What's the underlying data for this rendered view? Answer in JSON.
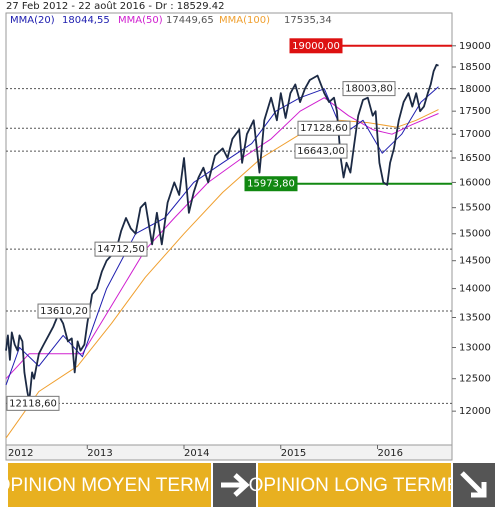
{
  "chart_data": {
    "type": "line",
    "title": "27 Feb 2012 - 22 août 2016 - Dr : 18529.42",
    "log_scale": true,
    "xlim": [
      2012.16,
      2016.77
    ],
    "xticks": [
      2012,
      2013,
      2014,
      2015,
      2016
    ],
    "ylim": [
      11500,
      19800
    ],
    "yticks": [
      12000,
      12500,
      13000,
      13500,
      14000,
      14500,
      15000,
      15500,
      16000,
      16500,
      17000,
      17500,
      18000,
      18500,
      19000
    ],
    "series": [
      {
        "color": "#1c2a44",
        "x": [
          2012.16,
          2012.18,
          2012.2,
          2012.22,
          2012.25,
          2012.28,
          2012.3,
          2012.33,
          2012.35,
          2012.38,
          2012.4,
          2012.43,
          2012.45,
          2012.5,
          2012.55,
          2012.6,
          2012.65,
          2012.7,
          2012.75,
          2012.8,
          2012.84,
          2012.87,
          2012.9,
          2012.93,
          2012.97,
          2013.0,
          2013.05,
          2013.1,
          2013.15,
          2013.2,
          2013.25,
          2013.3,
          2013.35,
          2013.4,
          2013.45,
          2013.5,
          2013.55,
          2013.6,
          2013.67,
          2013.72,
          2013.77,
          2013.83,
          2013.9,
          2013.95,
          2014.0,
          2014.05,
          2014.1,
          2014.15,
          2014.2,
          2014.25,
          2014.32,
          2014.4,
          2014.45,
          2014.5,
          2014.57,
          2014.6,
          2014.65,
          2014.72,
          2014.78,
          2014.83,
          2014.9,
          2014.96,
          2015.0,
          2015.05,
          2015.1,
          2015.15,
          2015.2,
          2015.25,
          2015.3,
          2015.38,
          2015.45,
          2015.5,
          2015.55,
          2015.58,
          2015.62,
          2015.65,
          2015.68,
          2015.72,
          2015.76,
          2015.8,
          2015.85,
          2015.9,
          2015.95,
          2015.98,
          2016.02,
          2016.06,
          2016.1,
          2016.13,
          2016.17,
          2016.22,
          2016.27,
          2016.32,
          2016.36,
          2016.4,
          2016.44,
          2016.48,
          2016.52,
          2016.55,
          2016.58,
          2016.61,
          2016.63
        ],
        "values": [
          12950,
          13200,
          12800,
          13250,
          13050,
          12950,
          13200,
          13100,
          12600,
          12300,
          12150,
          12600,
          12500,
          12900,
          13050,
          13200,
          13350,
          13550,
          13400,
          13100,
          13150,
          12600,
          13100,
          12950,
          13050,
          13400,
          13900,
          14000,
          14300,
          14500,
          14600,
          14700,
          15050,
          15300,
          15100,
          15000,
          15500,
          15600,
          14800,
          15400,
          14800,
          15600,
          16000,
          15750,
          16500,
          15400,
          15800,
          16100,
          16300,
          16000,
          16550,
          16700,
          16500,
          16900,
          17100,
          16400,
          17000,
          17300,
          16200,
          17300,
          17800,
          17300,
          17900,
          17350,
          17900,
          18100,
          17700,
          18000,
          18200,
          18300,
          17900,
          17700,
          17800,
          17500,
          16500,
          16100,
          16400,
          16200,
          16800,
          17400,
          17750,
          17800,
          17400,
          17500,
          16400,
          16000,
          15950,
          16400,
          16700,
          17300,
          17700,
          17900,
          17600,
          17900,
          17500,
          17600,
          17900,
          18100,
          18400,
          18550,
          18529.42
        ]
      },
      {
        "name": "MMA(20)",
        "color": "#2020b0",
        "last_value_label": "18044,55",
        "x": [
          2012.16,
          2012.3,
          2012.5,
          2012.75,
          2012.95,
          2013.2,
          2013.5,
          2013.8,
          2014.1,
          2014.4,
          2014.7,
          2014.95,
          2015.2,
          2015.45,
          2015.65,
          2015.85,
          2016.05,
          2016.25,
          2016.45,
          2016.63
        ],
        "values": [
          12400,
          13000,
          12700,
          13200,
          12850,
          14000,
          15000,
          15300,
          16000,
          16400,
          16800,
          17500,
          17800,
          18000,
          17000,
          17300,
          16600,
          17000,
          17700,
          18044.55
        ]
      },
      {
        "name": "MMA(50)",
        "color": "#d020d0",
        "last_value_label": "17449,65",
        "x": [
          2012.16,
          2012.4,
          2012.7,
          2012.95,
          2013.25,
          2013.6,
          2013.9,
          2014.25,
          2014.6,
          2014.9,
          2015.2,
          2015.45,
          2015.7,
          2015.95,
          2016.15,
          2016.35,
          2016.63
        ],
        "values": [
          12500,
          12900,
          12900,
          12900,
          13700,
          14700,
          15300,
          16000,
          16500,
          16900,
          17500,
          17800,
          17400,
          17100,
          17000,
          17200,
          17449.65
        ]
      },
      {
        "name": "MMA(100)",
        "color": "#f0a030",
        "last_value_label": "17535,34",
        "x": [
          2012.16,
          2012.5,
          2012.9,
          2013.25,
          2013.6,
          2014.0,
          2014.4,
          2014.8,
          2015.2,
          2015.6,
          2015.9,
          2016.2,
          2016.4,
          2016.63
        ],
        "values": [
          11600,
          12300,
          12700,
          13400,
          14200,
          15000,
          15800,
          16500,
          17000,
          17300,
          17250,
          17150,
          17300,
          17535.34
        ]
      }
    ],
    "levels": {
      "values": [
        19000,
        18003.8,
        17128.6,
        16643,
        15973.8,
        14712.5,
        13610.2,
        12118.6
      ],
      "value_labels": [
        "19000,00",
        "18003,80",
        "17128,60",
        "16643,00",
        "15973,80",
        "14712,50",
        "13610,20",
        "12118,60"
      ],
      "colors": [
        "#dd1111",
        "#555555",
        "#555555",
        "#555555",
        "#118811",
        "#555555",
        "#555555",
        "#555555"
      ]
    }
  },
  "buttons": [
    "OPINION MOYEN TERME",
    "OPINION LONG TERME"
  ]
}
